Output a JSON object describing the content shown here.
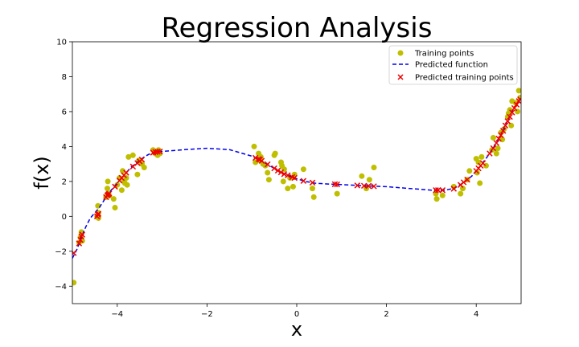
{
  "chart_data": {
    "type": "scatter",
    "title": "Regression Analysis",
    "xlabel": "x",
    "ylabel": "f(x)",
    "xlim": [
      -5,
      5
    ],
    "ylim": [
      -5,
      10
    ],
    "xticks": [
      -4,
      -2,
      0,
      2,
      4
    ],
    "xtick_labels": [
      "−4",
      "−2",
      "0",
      "2",
      "4"
    ],
    "yticks": [
      -4,
      -2,
      0,
      2,
      4,
      6,
      8,
      10
    ],
    "ytick_labels": [
      "−4",
      "−2",
      "0",
      "2",
      "4",
      "6",
      "8",
      "10"
    ],
    "grid": false,
    "legend_position": "top-right",
    "series": [
      {
        "name": "Training points",
        "kind": "scatter-dot",
        "color": "#bfbf00",
        "points": [
          [
            -4.97,
            -3.8
          ],
          [
            -4.85,
            -1.5
          ],
          [
            -4.82,
            -1.2
          ],
          [
            -4.8,
            -0.9
          ],
          [
            -4.78,
            -1.4
          ],
          [
            -4.45,
            0.0
          ],
          [
            -4.43,
            0.6
          ],
          [
            -4.42,
            -0.1
          ],
          [
            -4.42,
            0.2
          ],
          [
            -4.25,
            1.1
          ],
          [
            -4.22,
            1.6
          ],
          [
            -4.21,
            2.0
          ],
          [
            -4.2,
            1.3
          ],
          [
            -4.18,
            1.2
          ],
          [
            -4.08,
            1.0
          ],
          [
            -4.05,
            0.5
          ],
          [
            -4.0,
            1.8
          ],
          [
            -3.95,
            2.2
          ],
          [
            -3.9,
            1.5
          ],
          [
            -3.88,
            2.6
          ],
          [
            -3.85,
            2.0
          ],
          [
            -3.83,
            1.9
          ],
          [
            -3.8,
            2.2
          ],
          [
            -3.78,
            1.8
          ],
          [
            -3.75,
            3.4
          ],
          [
            -3.65,
            3.5
          ],
          [
            -3.55,
            2.4
          ],
          [
            -3.52,
            3.2
          ],
          [
            -3.45,
            3.0
          ],
          [
            -3.4,
            2.8
          ],
          [
            -3.2,
            3.8
          ],
          [
            -3.15,
            3.6
          ],
          [
            -3.12,
            3.6
          ],
          [
            -3.1,
            3.5
          ],
          [
            -3.08,
            3.8
          ],
          [
            -3.05,
            3.6
          ],
          [
            -0.95,
            4.0
          ],
          [
            -0.92,
            3.1
          ],
          [
            -0.85,
            3.6
          ],
          [
            -0.82,
            3.2
          ],
          [
            -0.8,
            3.4
          ],
          [
            -0.75,
            3.0
          ],
          [
            -0.7,
            2.9
          ],
          [
            -0.65,
            2.5
          ],
          [
            -0.62,
            2.1
          ],
          [
            -0.5,
            3.5
          ],
          [
            -0.48,
            3.6
          ],
          [
            -0.35,
            3.1
          ],
          [
            -0.33,
            2.9
          ],
          [
            -0.3,
            2.0
          ],
          [
            -0.28,
            2.7
          ],
          [
            -0.2,
            1.6
          ],
          [
            -0.15,
            2.2
          ],
          [
            -0.08,
            1.7
          ],
          [
            -0.05,
            2.4
          ],
          [
            0.15,
            2.7
          ],
          [
            0.35,
            1.6
          ],
          [
            0.38,
            1.1
          ],
          [
            0.9,
            1.3
          ],
          [
            1.45,
            2.3
          ],
          [
            1.55,
            1.6
          ],
          [
            1.62,
            2.1
          ],
          [
            1.72,
            2.8
          ],
          [
            3.1,
            1.3
          ],
          [
            3.12,
            1.0
          ],
          [
            3.25,
            1.2
          ],
          [
            3.5,
            1.7
          ],
          [
            3.65,
            1.3
          ],
          [
            3.7,
            1.6
          ],
          [
            3.8,
            2.1
          ],
          [
            3.85,
            2.6
          ],
          [
            4.0,
            3.3
          ],
          [
            4.02,
            2.5
          ],
          [
            4.05,
            3.1
          ],
          [
            4.08,
            1.9
          ],
          [
            4.12,
            3.4
          ],
          [
            4.22,
            2.9
          ],
          [
            4.35,
            3.8
          ],
          [
            4.38,
            4.5
          ],
          [
            4.45,
            3.6
          ],
          [
            4.48,
            3.9
          ],
          [
            4.55,
            4.8
          ],
          [
            4.58,
            4.4
          ],
          [
            4.62,
            5.0
          ],
          [
            4.7,
            5.7
          ],
          [
            4.72,
            5.9
          ],
          [
            4.75,
            6.1
          ],
          [
            4.78,
            5.2
          ],
          [
            4.8,
            6.6
          ],
          [
            4.88,
            6.5
          ],
          [
            4.92,
            6.0
          ],
          [
            4.95,
            7.2
          ],
          [
            4.98,
            6.8
          ]
        ]
      },
      {
        "name": "Predicted function",
        "kind": "dashed-line",
        "color": "#0000ee",
        "points": [
          [
            -5.0,
            -2.4
          ],
          [
            -4.9,
            -1.9
          ],
          [
            -4.8,
            -1.2
          ],
          [
            -4.7,
            -0.6
          ],
          [
            -4.6,
            -0.1
          ],
          [
            -4.5,
            0.2
          ],
          [
            -4.4,
            0.5
          ],
          [
            -4.3,
            0.9
          ],
          [
            -4.2,
            1.3
          ],
          [
            -4.1,
            1.6
          ],
          [
            -4.0,
            1.9
          ],
          [
            -3.9,
            2.2
          ],
          [
            -3.8,
            2.5
          ],
          [
            -3.7,
            2.8
          ],
          [
            -3.6,
            3.0
          ],
          [
            -3.5,
            3.2
          ],
          [
            -3.4,
            3.4
          ],
          [
            -3.3,
            3.55
          ],
          [
            -3.2,
            3.65
          ],
          [
            -3.1,
            3.7
          ],
          [
            -3.0,
            3.72
          ],
          [
            -2.5,
            3.82
          ],
          [
            -2.0,
            3.9
          ],
          [
            -1.5,
            3.82
          ],
          [
            -1.2,
            3.6
          ],
          [
            -1.0,
            3.45
          ],
          [
            -0.8,
            3.2
          ],
          [
            -0.6,
            2.9
          ],
          [
            -0.4,
            2.6
          ],
          [
            -0.2,
            2.35
          ],
          [
            0.0,
            2.15
          ],
          [
            0.2,
            2.0
          ],
          [
            0.4,
            1.9
          ],
          [
            0.7,
            1.85
          ],
          [
            1.0,
            1.82
          ],
          [
            1.5,
            1.75
          ],
          [
            2.0,
            1.7
          ],
          [
            2.5,
            1.6
          ],
          [
            3.0,
            1.5
          ],
          [
            3.3,
            1.5
          ],
          [
            3.5,
            1.6
          ],
          [
            3.7,
            1.9
          ],
          [
            3.9,
            2.3
          ],
          [
            4.1,
            2.9
          ],
          [
            4.3,
            3.6
          ],
          [
            4.5,
            4.4
          ],
          [
            4.6,
            4.9
          ],
          [
            4.7,
            5.5
          ],
          [
            4.8,
            6.0
          ],
          [
            4.9,
            6.4
          ],
          [
            5.0,
            6.8
          ]
        ]
      },
      {
        "name": "Predicted training points",
        "kind": "scatter-x",
        "color": "#ee0000",
        "points": [
          [
            -4.97,
            -2.1
          ],
          [
            -4.85,
            -1.55
          ],
          [
            -4.82,
            -1.35
          ],
          [
            -4.8,
            -1.15
          ],
          [
            -4.78,
            -1.05
          ],
          [
            -4.45,
            0.0
          ],
          [
            -4.43,
            0.1
          ],
          [
            -4.42,
            0.15
          ],
          [
            -4.25,
            1.1
          ],
          [
            -4.22,
            1.2
          ],
          [
            -4.2,
            1.25
          ],
          [
            -4.18,
            1.3
          ],
          [
            -4.05,
            1.7
          ],
          [
            -3.95,
            2.05
          ],
          [
            -3.9,
            2.2
          ],
          [
            -3.85,
            2.35
          ],
          [
            -3.8,
            2.5
          ],
          [
            -3.65,
            2.85
          ],
          [
            -3.55,
            3.05
          ],
          [
            -3.5,
            3.15
          ],
          [
            -3.45,
            3.25
          ],
          [
            -3.2,
            3.65
          ],
          [
            -3.15,
            3.68
          ],
          [
            -3.1,
            3.7
          ],
          [
            -3.05,
            3.71
          ],
          [
            -0.92,
            3.35
          ],
          [
            -0.85,
            3.28
          ],
          [
            -0.82,
            3.25
          ],
          [
            -0.78,
            3.18
          ],
          [
            -0.65,
            2.98
          ],
          [
            -0.5,
            2.75
          ],
          [
            -0.42,
            2.62
          ],
          [
            -0.35,
            2.52
          ],
          [
            -0.28,
            2.42
          ],
          [
            -0.2,
            2.35
          ],
          [
            -0.1,
            2.25
          ],
          [
            -0.05,
            2.2
          ],
          [
            0.15,
            2.03
          ],
          [
            0.35,
            1.93
          ],
          [
            0.85,
            1.84
          ],
          [
            0.9,
            1.83
          ],
          [
            1.35,
            1.77
          ],
          [
            1.5,
            1.75
          ],
          [
            1.6,
            1.74
          ],
          [
            1.72,
            1.72
          ],
          [
            3.1,
            1.5
          ],
          [
            3.15,
            1.5
          ],
          [
            3.25,
            1.5
          ],
          [
            3.5,
            1.58
          ],
          [
            3.65,
            1.8
          ],
          [
            3.72,
            1.95
          ],
          [
            3.8,
            2.1
          ],
          [
            4.0,
            2.6
          ],
          [
            4.05,
            2.75
          ],
          [
            4.1,
            2.9
          ],
          [
            4.15,
            3.05
          ],
          [
            4.3,
            3.6
          ],
          [
            4.38,
            3.9
          ],
          [
            4.45,
            4.2
          ],
          [
            4.5,
            4.45
          ],
          [
            4.55,
            4.65
          ],
          [
            4.6,
            4.9
          ],
          [
            4.65,
            5.2
          ],
          [
            4.7,
            5.45
          ],
          [
            4.75,
            5.7
          ],
          [
            4.8,
            5.95
          ],
          [
            4.85,
            6.2
          ],
          [
            4.9,
            6.4
          ],
          [
            4.95,
            6.6
          ],
          [
            4.98,
            6.7
          ]
        ]
      }
    ]
  }
}
